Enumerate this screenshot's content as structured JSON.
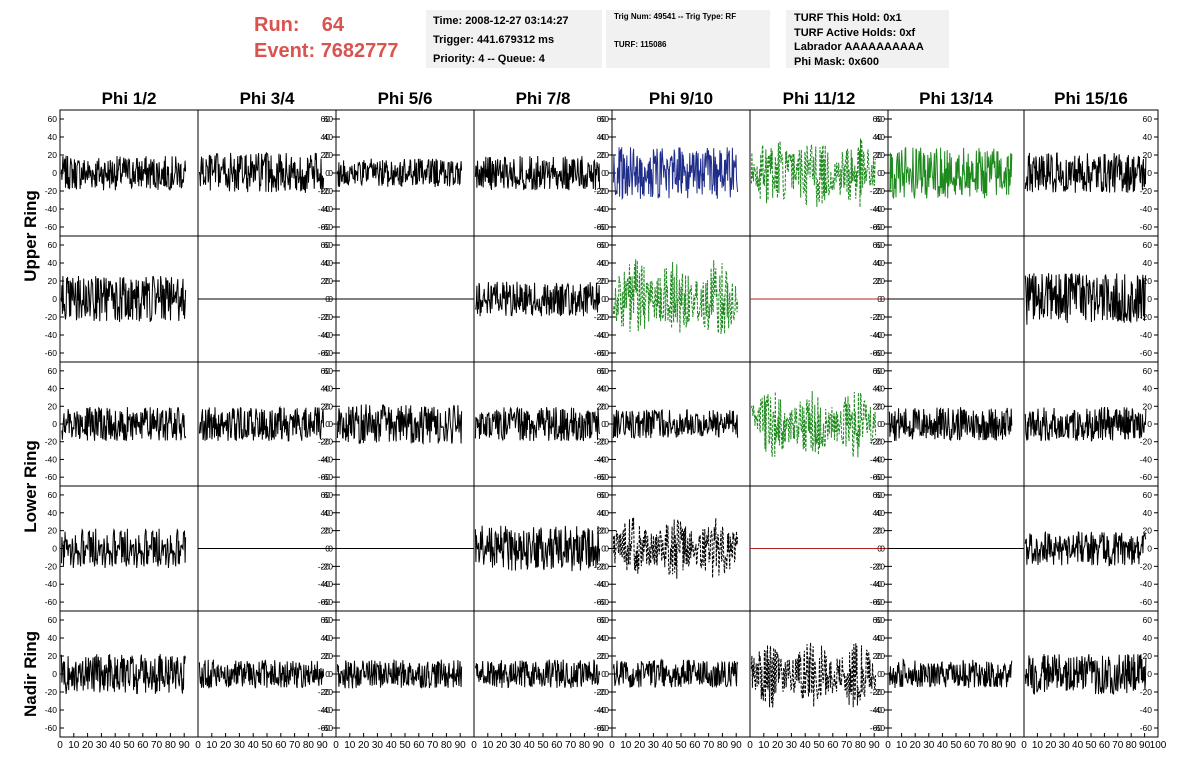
{
  "header": {
    "run_label": "Run:",
    "run_value": "64",
    "event_label": "Event:",
    "event_value": "7682777",
    "time": "Time: 2008-12-27 03:14:27",
    "trigger": "Trigger: 441.679312 ms",
    "priority": "Priority: 4 -- Queue: 4",
    "trig_num": "Trig Num: 49541 -- Trig Type: RF",
    "turf": "TURF: 115086",
    "turf_this_hold": "TURF This Hold: 0x1",
    "turf_active_holds": "TURF Active Holds: 0xf",
    "labrador": "Labrador AAAAAAAAAA",
    "phi_mask": "Phi Mask: 0x600"
  },
  "chart_data": {
    "type": "line",
    "columns": [
      "Phi 1/2",
      "Phi 3/4",
      "Phi 5/6",
      "Phi 7/8",
      "Phi 9/10",
      "Phi 11/12",
      "Phi 13/14",
      "Phi 15/16"
    ],
    "rows": [
      "Upper Ring",
      "Lower Ring",
      "Nadir Ring"
    ],
    "xlim": [
      0,
      100
    ],
    "ylim": [
      -70,
      70
    ],
    "x_ticks": [
      "0",
      "10",
      "20",
      "30",
      "40",
      "50",
      "60",
      "70",
      "80",
      "90",
      "100"
    ],
    "y_ticks": [
      "-60",
      "-40",
      "-20",
      "0",
      "20",
      "40",
      "60"
    ],
    "colors": {
      "normal": "#000000",
      "blue": "#1f2d8a",
      "green": "#1e8a1e",
      "red": "#b22222"
    },
    "panels": [
      {
        "row": 0,
        "col": 0,
        "style": "solid",
        "color": "#000000",
        "amp": 12
      },
      {
        "row": 0,
        "col": 1,
        "style": "solid",
        "color": "#000000",
        "amp": 14
      },
      {
        "row": 0,
        "col": 2,
        "style": "solid",
        "color": "#000000",
        "amp": 10
      },
      {
        "row": 0,
        "col": 3,
        "style": "solid",
        "color": "#000000",
        "amp": 12
      },
      {
        "row": 0,
        "col": 4,
        "style": "solid",
        "color": "#1f2d8a",
        "amp": 18
      },
      {
        "row": 0,
        "col": 5,
        "style": "dashed",
        "color": "#1e8a1e",
        "amp": 26
      },
      {
        "row": 0,
        "col": 6,
        "style": "solid",
        "color": "#1e8a1e",
        "amp": 18
      },
      {
        "row": 0,
        "col": 7,
        "style": "solid",
        "color": "#000000",
        "amp": 14
      },
      {
        "row": 1,
        "col": 0,
        "style": "solid",
        "color": "#000000",
        "amp": 16
      },
      {
        "row": 1,
        "col": 1,
        "style": "flat",
        "color": "#000000",
        "amp": 0
      },
      {
        "row": 1,
        "col": 2,
        "style": "flat",
        "color": "#000000",
        "amp": 0
      },
      {
        "row": 1,
        "col": 3,
        "style": "solid",
        "color": "#000000",
        "amp": 12
      },
      {
        "row": 1,
        "col": 4,
        "style": "dashed",
        "color": "#1e8a1e",
        "amp": 28
      },
      {
        "row": 1,
        "col": 5,
        "style": "flat",
        "color": "#b22222",
        "amp": 0
      },
      {
        "row": 1,
        "col": 6,
        "style": "flat",
        "color": "#000000",
        "amp": 0
      },
      {
        "row": 1,
        "col": 7,
        "style": "solid",
        "color": "#000000",
        "amp": 18
      },
      {
        "row": 2,
        "col": 0,
        "style": "solid",
        "color": "#000000",
        "amp": 12
      },
      {
        "row": 2,
        "col": 1,
        "style": "solid",
        "color": "#000000",
        "amp": 12
      },
      {
        "row": 2,
        "col": 2,
        "style": "solid",
        "color": "#000000",
        "amp": 14
      },
      {
        "row": 2,
        "col": 3,
        "style": "solid",
        "color": "#000000",
        "amp": 12
      },
      {
        "row": 2,
        "col": 4,
        "style": "solid",
        "color": "#000000",
        "amp": 10
      },
      {
        "row": 2,
        "col": 5,
        "style": "dashed",
        "color": "#1e8a1e",
        "amp": 24
      },
      {
        "row": 2,
        "col": 6,
        "style": "solid",
        "color": "#000000",
        "amp": 12
      },
      {
        "row": 2,
        "col": 7,
        "style": "solid",
        "color": "#000000",
        "amp": 12
      },
      {
        "row": 3,
        "col": 0,
        "style": "solid",
        "color": "#000000",
        "amp": 14
      },
      {
        "row": 3,
        "col": 1,
        "style": "flat",
        "color": "#000000",
        "amp": 0
      },
      {
        "row": 3,
        "col": 2,
        "style": "flat",
        "color": "#000000",
        "amp": 0
      },
      {
        "row": 3,
        "col": 3,
        "style": "solid",
        "color": "#000000",
        "amp": 16
      },
      {
        "row": 3,
        "col": 4,
        "style": "dashed",
        "color": "#000000",
        "amp": 22
      },
      {
        "row": 3,
        "col": 5,
        "style": "flat",
        "color": "#b22222",
        "amp": 0
      },
      {
        "row": 3,
        "col": 6,
        "style": "flat",
        "color": "#000000",
        "amp": 0
      },
      {
        "row": 3,
        "col": 7,
        "style": "solid",
        "color": "#000000",
        "amp": 12
      },
      {
        "row": 4,
        "col": 0,
        "style": "solid",
        "color": "#000000",
        "amp": 14
      },
      {
        "row": 4,
        "col": 1,
        "style": "solid",
        "color": "#000000",
        "amp": 10
      },
      {
        "row": 4,
        "col": 2,
        "style": "solid",
        "color": "#000000",
        "amp": 10
      },
      {
        "row": 4,
        "col": 3,
        "style": "solid",
        "color": "#000000",
        "amp": 10
      },
      {
        "row": 4,
        "col": 4,
        "style": "solid",
        "color": "#000000",
        "amp": 10
      },
      {
        "row": 4,
        "col": 5,
        "style": "dashed",
        "color": "#000000",
        "amp": 24
      },
      {
        "row": 4,
        "col": 6,
        "style": "solid",
        "color": "#000000",
        "amp": 10
      },
      {
        "row": 4,
        "col": 7,
        "style": "solid",
        "color": "#000000",
        "amp": 14
      }
    ]
  }
}
